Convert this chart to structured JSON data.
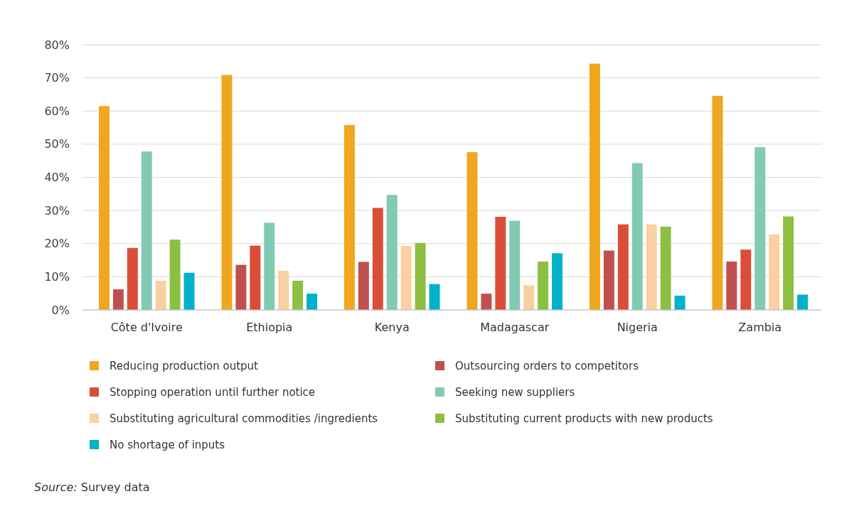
{
  "chart_data": {
    "type": "bar",
    "categories": [
      "Côte d'Ivoire",
      "Ethiopia",
      "Kenya",
      "Madagascar",
      "Nigeria",
      "Zambia"
    ],
    "series": [
      {
        "name": "Reducing production output",
        "color": "#f0a71f",
        "values": [
          61.5,
          70.9,
          55.8,
          47.6,
          74.3,
          64.6
        ]
      },
      {
        "name": "Outsourcing orders to competitors",
        "color": "#c0504d",
        "values": [
          6.2,
          13.6,
          14.5,
          4.9,
          17.9,
          14.6
        ]
      },
      {
        "name": "Stopping operation until further notice",
        "color": "#da4e37",
        "values": [
          18.7,
          19.4,
          30.8,
          28.1,
          25.8,
          18.2
        ]
      },
      {
        "name": "Seeking new suppliers",
        "color": "#82cbb2",
        "values": [
          47.8,
          26.3,
          34.7,
          26.9,
          44.3,
          49.1
        ]
      },
      {
        "name": "Substituting agricultural commodities /ingredients",
        "color": "#f9d0a1",
        "values": [
          8.8,
          11.8,
          19.3,
          7.4,
          25.8,
          22.8
        ]
      },
      {
        "name": "Substituting current products with new products",
        "color": "#8dbf42",
        "values": [
          21.2,
          8.8,
          20.2,
          14.6,
          25.1,
          28.2
        ]
      },
      {
        "name": "No shortage of inputs",
        "color": "#00b2c9",
        "values": [
          11.2,
          4.9,
          7.8,
          17.1,
          4.3,
          4.6
        ]
      }
    ],
    "ylim": [
      0,
      80
    ],
    "yticks": [
      {
        "value": 0,
        "label": "0%"
      },
      {
        "value": 10,
        "label": "10%"
      },
      {
        "value": 20,
        "label": "20%"
      },
      {
        "value": 30,
        "label": "30%"
      },
      {
        "value": 40,
        "label": "40%"
      },
      {
        "value": 50,
        "label": "50%"
      },
      {
        "value": 60,
        "label": "60%"
      },
      {
        "value": 70,
        "label": "70%"
      },
      {
        "value": 80,
        "label": "80%"
      }
    ],
    "grid": "y",
    "legend": "bottom",
    "annotations": [
      "Source: Survey data"
    ]
  }
}
